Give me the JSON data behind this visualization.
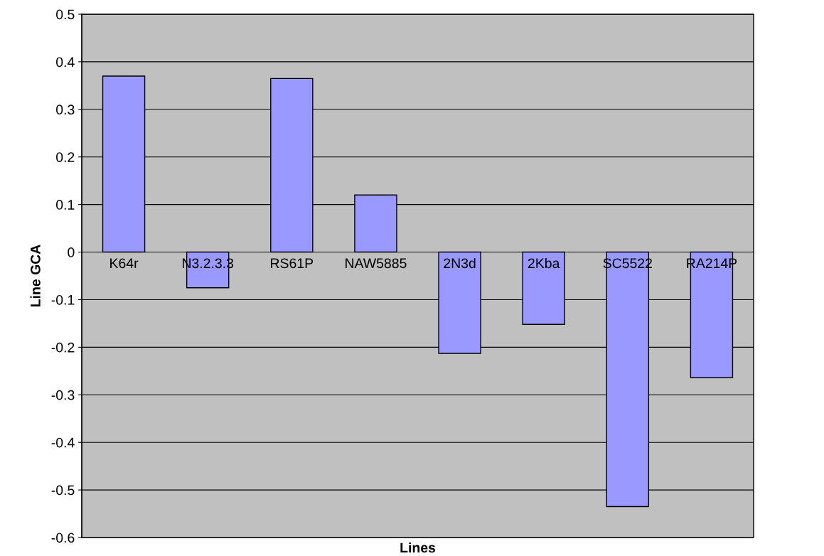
{
  "chart_data": {
    "type": "bar",
    "xlabel": "Lines",
    "ylabel": "Line GCA",
    "categories": [
      "K64r",
      "N3.2.3.3",
      "RS61P",
      "NAW5885",
      "2N3d",
      "2Kba",
      "SC5522",
      "RA214P"
    ],
    "values": [
      0.37,
      -0.075,
      0.365,
      0.12,
      -0.213,
      -0.152,
      -0.535,
      -0.264
    ],
    "color": "#9999ff",
    "ylim": [
      -0.6,
      0.5
    ],
    "yticks": [
      -0.6,
      -0.5,
      -0.4,
      -0.3,
      -0.2,
      -0.1,
      0,
      0.1,
      0.2,
      0.3,
      0.4,
      0.5
    ],
    "grid": "y"
  }
}
